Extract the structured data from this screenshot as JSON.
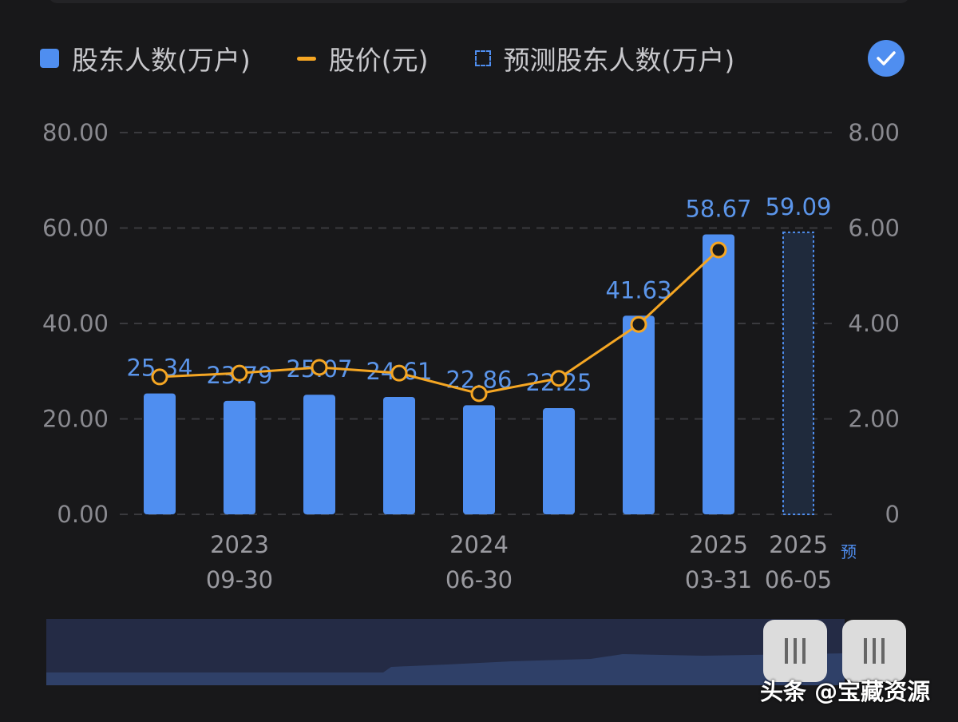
{
  "legend": {
    "holders": "股东人数(万户)",
    "price": "股价(元)",
    "forecast": "预测股东人数(万户)"
  },
  "colors": {
    "bar": "#4f8ef0",
    "line": "#f5a623",
    "label": "#5b95ea"
  },
  "watermark": "头条 @宝藏资源",
  "chart_data": {
    "type": "bar",
    "left_axis": {
      "ticks": [
        "0.00",
        "20.00",
        "40.00",
        "60.00",
        "80.00"
      ],
      "range": [
        0,
        80
      ]
    },
    "right_axis": {
      "ticks": [
        "0",
        "2.00",
        "4.00",
        "6.00",
        "8.00"
      ],
      "range": [
        0,
        8
      ]
    },
    "x_labels": [
      {
        "index": 1,
        "year": "2023",
        "date": "09-30"
      },
      {
        "index": 4,
        "year": "2024",
        "date": "06-30"
      },
      {
        "index": 7,
        "year": "2025",
        "date": "03-31"
      },
      {
        "index": 8,
        "year": "2025",
        "date": "06-05",
        "tag": "预"
      }
    ],
    "series": [
      {
        "name": "股东人数(万户)",
        "type": "bar",
        "values": [
          25.34,
          23.79,
          25.07,
          24.61,
          22.86,
          22.25,
          41.63,
          58.67
        ],
        "labels": [
          "25.34",
          "23.79",
          "25.07",
          "24.61",
          "22.86",
          "22.25",
          "41.63",
          "58.67"
        ]
      },
      {
        "name": "股价(元)",
        "type": "line",
        "values": [
          2.88,
          2.96,
          3.08,
          2.96,
          2.53,
          2.85,
          3.98,
          5.54
        ]
      },
      {
        "name": "预测股东人数(万户)",
        "type": "bar-dashed",
        "values": [
          null,
          null,
          null,
          null,
          null,
          null,
          null,
          null,
          59.09
        ],
        "labels": [
          "59.09"
        ]
      }
    ],
    "grid": true
  }
}
